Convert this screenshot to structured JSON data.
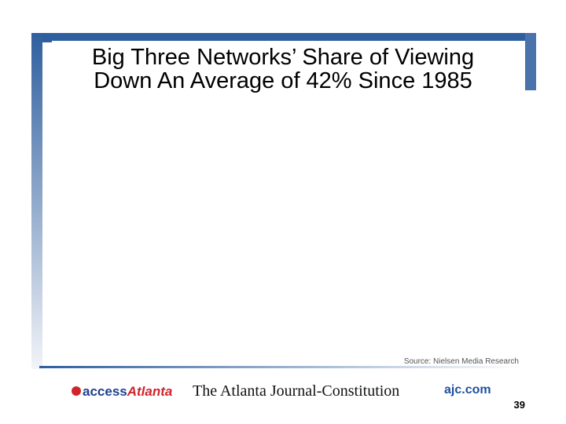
{
  "slide": {
    "title": [
      "Big Three Networks’ Share of Viewing",
      "Down An Average of 42% Since 1985"
    ],
    "source": "Source:  Nielsen Media Research",
    "footer": {
      "access_logo": {
        "first": "access",
        "second": "Atlanta"
      },
      "newspaper": "The Atlanta Journal-Constitution",
      "site": "ajc.com",
      "page_number": "39"
    }
  }
}
